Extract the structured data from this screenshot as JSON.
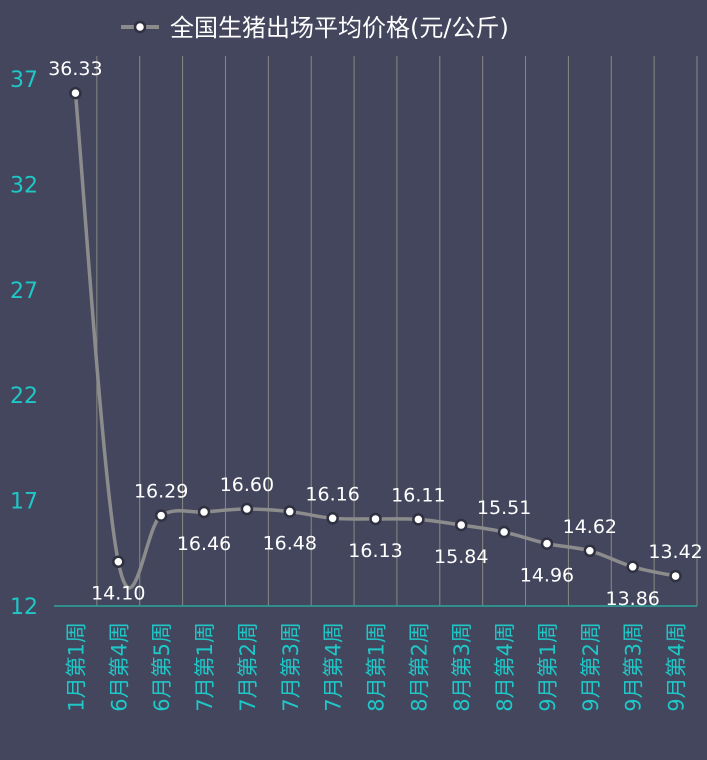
{
  "chart_data": {
    "type": "line",
    "title": "",
    "xlabel": "",
    "ylabel": "",
    "ylim": [
      12,
      37
    ],
    "yticks": [
      12,
      17,
      22,
      27,
      32,
      37
    ],
    "grid": "vertical",
    "legend_position": "top",
    "categories": [
      "1月第1周",
      "6月第4周",
      "6月第5周",
      "7月第1周",
      "7月第2周",
      "7月第3周",
      "7月第4周",
      "8月第1周",
      "8月第2周",
      "8月第3周",
      "8月第4周",
      "9月第1周",
      "9月第2周",
      "9月第3周",
      "9月第4周"
    ],
    "series": [
      {
        "name": "全国生猪出场平均价格(元/公斤)",
        "values": [
          36.33,
          14.1,
          16.29,
          16.46,
          16.6,
          16.48,
          16.16,
          16.13,
          16.11,
          15.84,
          15.51,
          14.96,
          14.62,
          13.86,
          13.42
        ],
        "labels": [
          "36.33",
          "14.10",
          "16.29",
          "16.46",
          "16.60",
          "16.48",
          "16.16",
          "16.13",
          "16.11",
          "15.84",
          "15.51",
          "14.96",
          "14.62",
          "13.86",
          "13.42"
        ],
        "color": "#8c8c8c"
      }
    ]
  },
  "colors": {
    "background": "#43465d",
    "axis_text": "#1fc7c7",
    "gridline": "#8a8a82",
    "baseline": "#2aa79b",
    "line": "#8c8c8c",
    "marker_fill": "#ffffff",
    "label_text": "#ffffff"
  }
}
